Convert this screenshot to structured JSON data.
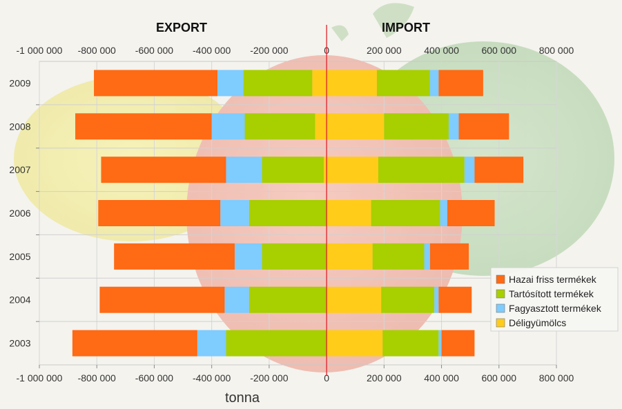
{
  "chart_data": {
    "type": "bar",
    "orientation": "horizontal",
    "stacked": true,
    "side_titles": {
      "left": "EXPORT",
      "right": "IMPORT"
    },
    "xlabel": "tonna",
    "xlim": [
      -1000000,
      800000
    ],
    "xticks": [
      -1000000,
      -800000,
      -600000,
      -400000,
      -200000,
      0,
      200000,
      400000,
      600000,
      800000
    ],
    "xtick_labels": [
      "-1 000 000",
      "-800 000",
      "-600 000",
      "-400 000",
      "-200 000",
      "0",
      "200 000",
      "400 000",
      "600 000",
      "800 000"
    ],
    "categories": [
      "2009",
      "2008",
      "2007",
      "2006",
      "2005",
      "2004",
      "2003"
    ],
    "legend_position": "right",
    "grid": true,
    "series": [
      {
        "name": "Déligyümölcs",
        "color": "#FFCC1A",
        "export": [
          -50000,
          -40000,
          -10000,
          0,
          0,
          0,
          0
        ],
        "import": [
          175000,
          200000,
          180000,
          155000,
          160000,
          190000,
          195000
        ]
      },
      {
        "name": "Tartósított termékek",
        "color": "#A8CF00",
        "export": [
          -240000,
          -245000,
          -215000,
          -270000,
          -225000,
          -270000,
          -350000
        ],
        "import": [
          185000,
          225000,
          300000,
          240000,
          180000,
          185000,
          195000
        ]
      },
      {
        "name": "Fagyasztott termékek",
        "color": "#7FCCFF",
        "export": [
          -90000,
          -115000,
          -125000,
          -100000,
          -95000,
          -85000,
          -100000
        ],
        "import": [
          30000,
          35000,
          35000,
          25000,
          20000,
          15000,
          10000
        ]
      },
      {
        "name": "Hazai friss termékek",
        "color": "#FF6A14",
        "export": [
          -430000,
          -475000,
          -435000,
          -425000,
          -420000,
          -435000,
          -435000
        ],
        "import": [
          155000,
          175000,
          170000,
          165000,
          135000,
          115000,
          115000
        ]
      }
    ],
    "legend_order": [
      "Hazai friss termékek",
      "Tartósított termékek",
      "Fagyasztott termékek",
      "Déligyümölcs"
    ]
  }
}
